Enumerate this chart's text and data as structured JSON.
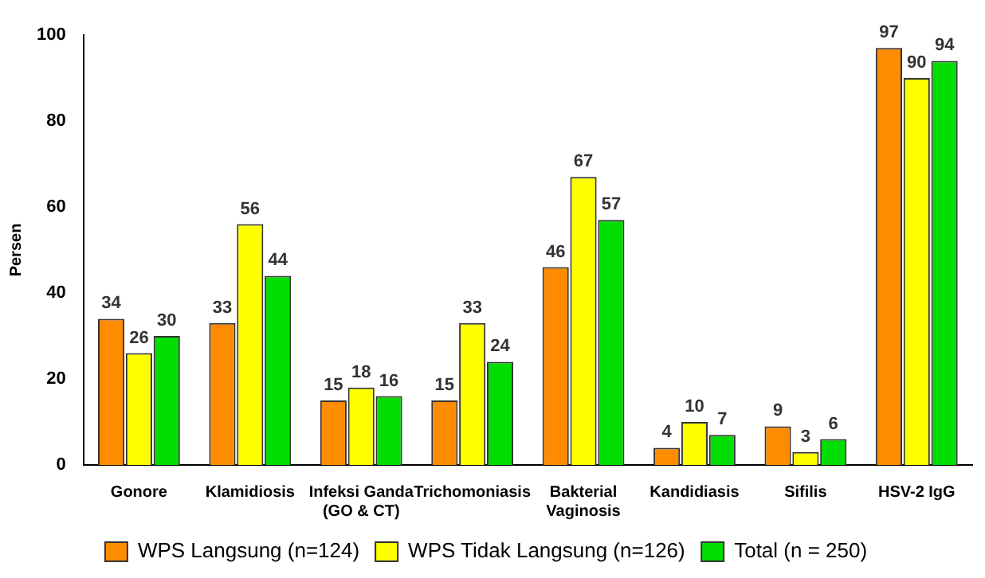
{
  "chart_data": {
    "type": "bar",
    "ylabel": "Persen",
    "categories": [
      "Gonore",
      "Klamidiosis",
      "Infeksi Ganda (GO & CT)",
      "Trichomoniasis",
      "Bakterial Vaginosis",
      "Kandidiasis",
      "Sifilis",
      "HSV-2 IgG"
    ],
    "series": [
      {
        "name": "WPS Langsung (n=124)",
        "color": "#ff8c00",
        "values": [
          34,
          33,
          15,
          15,
          46,
          4,
          9,
          97
        ]
      },
      {
        "name": "WPS Tidak Langsung (n=126)",
        "color": "#ffff00",
        "values": [
          26,
          56,
          18,
          33,
          67,
          10,
          3,
          90
        ]
      },
      {
        "name": "Total (n = 250)",
        "color": "#00dd00",
        "values": [
          30,
          44,
          16,
          24,
          57,
          7,
          6,
          94
        ]
      }
    ],
    "ylim": [
      0,
      100
    ],
    "yticks": [
      0,
      20,
      40,
      60,
      80,
      100
    ],
    "grid": false,
    "legend": "bottom",
    "data_labels": true
  }
}
